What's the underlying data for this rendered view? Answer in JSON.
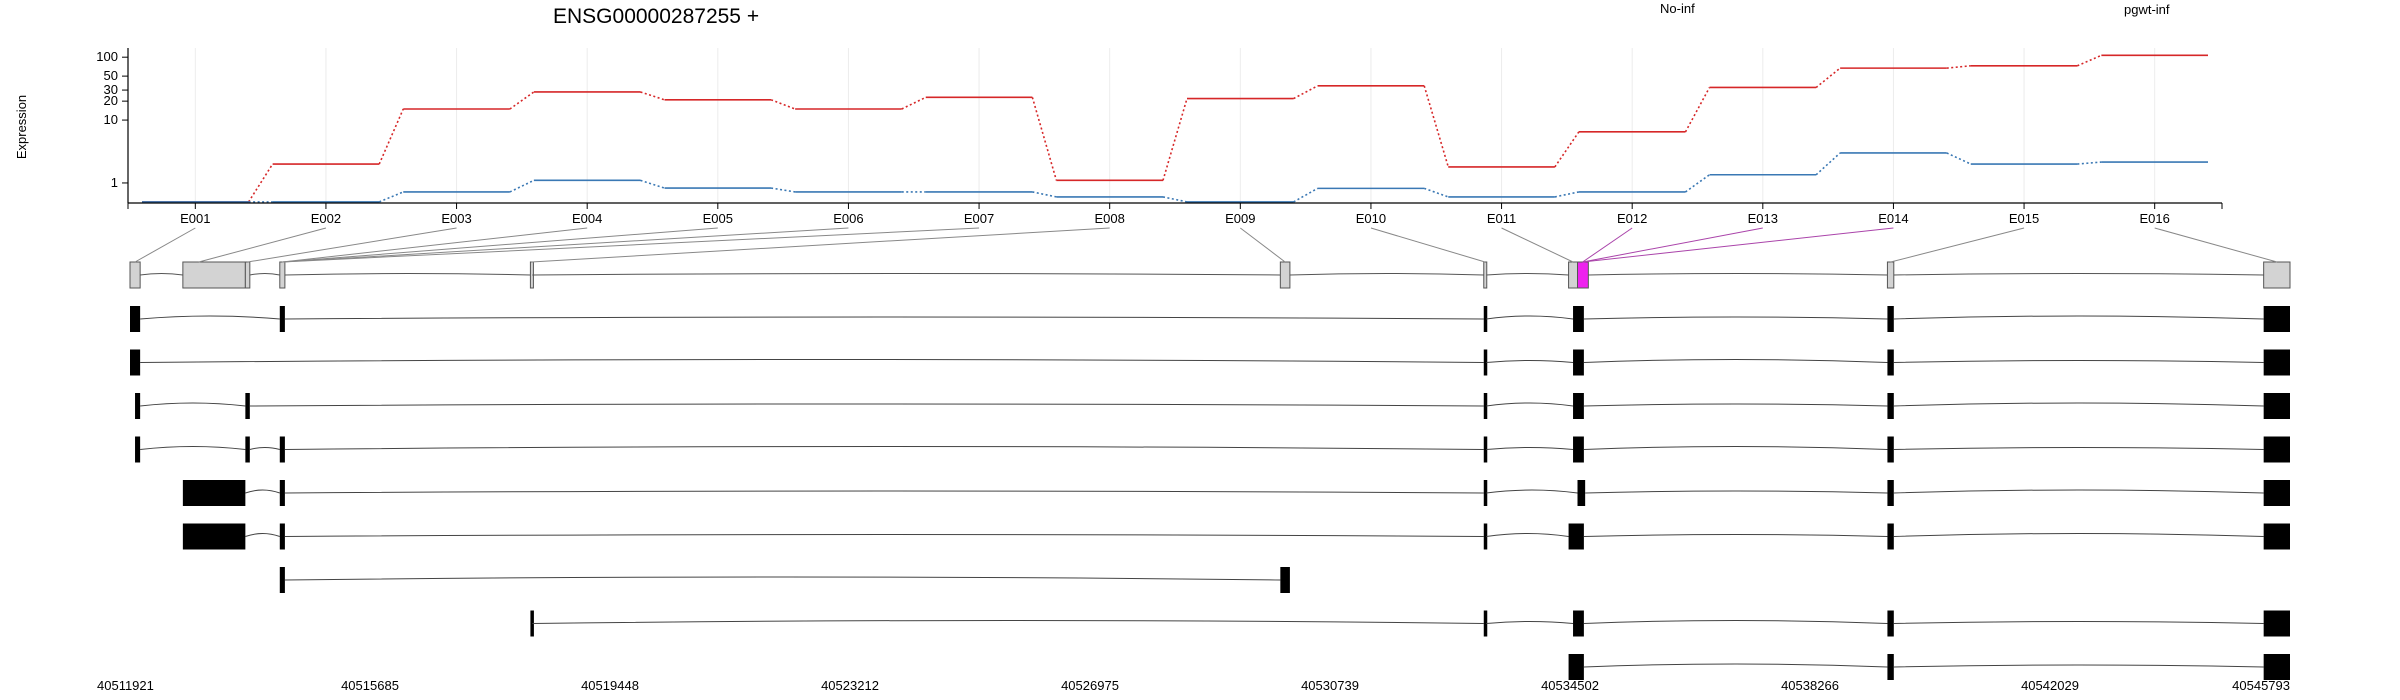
{
  "chart_data": {
    "type": "line",
    "title": "ENSG00000287255 +",
    "ylabel": "Expression",
    "yscale": "log",
    "ylim": [
      0.48,
      140
    ],
    "yticks": [
      1,
      10,
      20,
      30,
      50,
      100
    ],
    "grid": true,
    "legend_placement": "top",
    "categories": [
      "E001",
      "E002",
      "E003",
      "E004",
      "E005",
      "E006",
      "E007",
      "E008",
      "E009",
      "E010",
      "E011",
      "E012",
      "E013",
      "E014",
      "E015",
      "E016"
    ],
    "series": [
      {
        "name": "No-inf",
        "color": "#d62728",
        "values": [
          0.5,
          2.0,
          15,
          28,
          21,
          15,
          23,
          1.1,
          22,
          35,
          1.8,
          6.5,
          33,
          67,
          73,
          107
        ]
      },
      {
        "name": "pgwt-inf",
        "color": "#3a78b4",
        "values": [
          0.5,
          0.5,
          0.72,
          1.1,
          0.83,
          0.72,
          0.72,
          0.6,
          0.5,
          0.82,
          0.6,
          0.72,
          1.35,
          3.0,
          2.0,
          2.15
        ]
      }
    ],
    "genomic_axis": {
      "start": 40511921,
      "end": 40545793,
      "tick_labels": [
        "40511921",
        "40515685",
        "40519448",
        "40523212",
        "40526975",
        "40530739",
        "40534502",
        "40538266",
        "40542029",
        "40545793"
      ]
    },
    "gene_model": {
      "exons": [
        {
          "id": "E001",
          "start": 40511921,
          "end": 40512080,
          "highlight": false
        },
        {
          "id": "E002",
          "start": 40512750,
          "end": 40513730,
          "highlight": false
        },
        {
          "id": "E003",
          "start": 40513730,
          "end": 40513800,
          "highlight": false
        },
        {
          "id": "E004",
          "start": 40514270,
          "end": 40514350,
          "highlight": false
        },
        {
          "id": "E005",
          "start": 40518200,
          "end": 40518230,
          "highlight": false
        },
        {
          "id": "E006",
          "start": 40529960,
          "end": 40530110,
          "highlight": false
        },
        {
          "id": "E007",
          "start": 40533150,
          "end": 40533190,
          "highlight": false
        },
        {
          "id": "E008",
          "start": 40534480,
          "end": 40534620,
          "highlight": false
        },
        {
          "id": "E009",
          "start": 40534620,
          "end": 40534790,
          "highlight": true
        },
        {
          "id": "E010",
          "start": 40539480,
          "end": 40539580,
          "highlight": false
        },
        {
          "id": "E011",
          "start": 40545380,
          "end": 40545793,
          "highlight": false
        }
      ],
      "connector_targets": [
        {
          "label": "E001",
          "pos": 40512000
        },
        {
          "label": "E002",
          "pos": 40513000
        },
        {
          "label": "E003",
          "pos": 40513765
        },
        {
          "label": "E004",
          "pos": 40514310
        },
        {
          "label": "E005",
          "pos": 40514310
        },
        {
          "label": "E006",
          "pos": 40514310
        },
        {
          "label": "E007",
          "pos": 40514310
        },
        {
          "label": "E008",
          "pos": 40518215
        },
        {
          "label": "E009",
          "pos": 40530035
        },
        {
          "label": "E010",
          "pos": 40533170
        },
        {
          "label": "E011",
          "pos": 40534550
        },
        {
          "label": "E012",
          "pos": 40534700
        },
        {
          "label": "E013",
          "pos": 40534700
        },
        {
          "label": "E014",
          "pos": 40534700
        },
        {
          "label": "E015",
          "pos": 40539530
        },
        {
          "label": "E016",
          "pos": 40545590
        }
      ]
    },
    "transcripts": [
      [
        [
          40511921,
          40512080
        ],
        [
          40514270,
          40514350
        ],
        [
          40533150,
          40533190
        ],
        [
          40534550,
          40534720
        ],
        [
          40539480,
          40539580
        ],
        [
          40545380,
          40545793
        ]
      ],
      [
        [
          40511921,
          40512080
        ],
        [
          40533150,
          40533190
        ],
        [
          40534550,
          40534720
        ],
        [
          40539480,
          40539580
        ],
        [
          40545380,
          40545793
        ]
      ],
      [
        [
          40512000,
          40512080
        ],
        [
          40513730,
          40513800
        ],
        [
          40533150,
          40533190
        ],
        [
          40534550,
          40534720
        ],
        [
          40539480,
          40539580
        ],
        [
          40545380,
          40545793
        ]
      ],
      [
        [
          40512000,
          40512080
        ],
        [
          40513730,
          40513800
        ],
        [
          40514270,
          40514350
        ],
        [
          40533150,
          40533190
        ],
        [
          40534550,
          40534720
        ],
        [
          40539480,
          40539580
        ],
        [
          40545380,
          40545793
        ]
      ],
      [
        [
          40512750,
          40513730
        ],
        [
          40514270,
          40514350
        ],
        [
          40533150,
          40533190
        ],
        [
          40534620,
          40534740
        ],
        [
          40539480,
          40539580
        ],
        [
          40545380,
          40545793
        ]
      ],
      [
        [
          40512750,
          40513730
        ],
        [
          40514270,
          40514350
        ],
        [
          40533150,
          40533190
        ],
        [
          40534480,
          40534720
        ],
        [
          40539480,
          40539580
        ],
        [
          40545380,
          40545793
        ]
      ],
      [
        [
          40514270,
          40514350
        ],
        [
          40529960,
          40530110
        ]
      ],
      [
        [
          40518200,
          40518230
        ],
        [
          40533150,
          40533190
        ],
        [
          40534550,
          40534720
        ],
        [
          40539480,
          40539580
        ],
        [
          40545380,
          40545793
        ]
      ],
      [
        [
          40534480,
          40534720
        ],
        [
          40539480,
          40539580
        ],
        [
          40545380,
          40545793
        ]
      ]
    ]
  },
  "colors": {
    "exon_fill": "#d3d3d3",
    "highlight_fill": "#ee22ee",
    "highlight_line": "#aa44aa",
    "transcript_fill": "#000000",
    "grid": "#ececec"
  }
}
